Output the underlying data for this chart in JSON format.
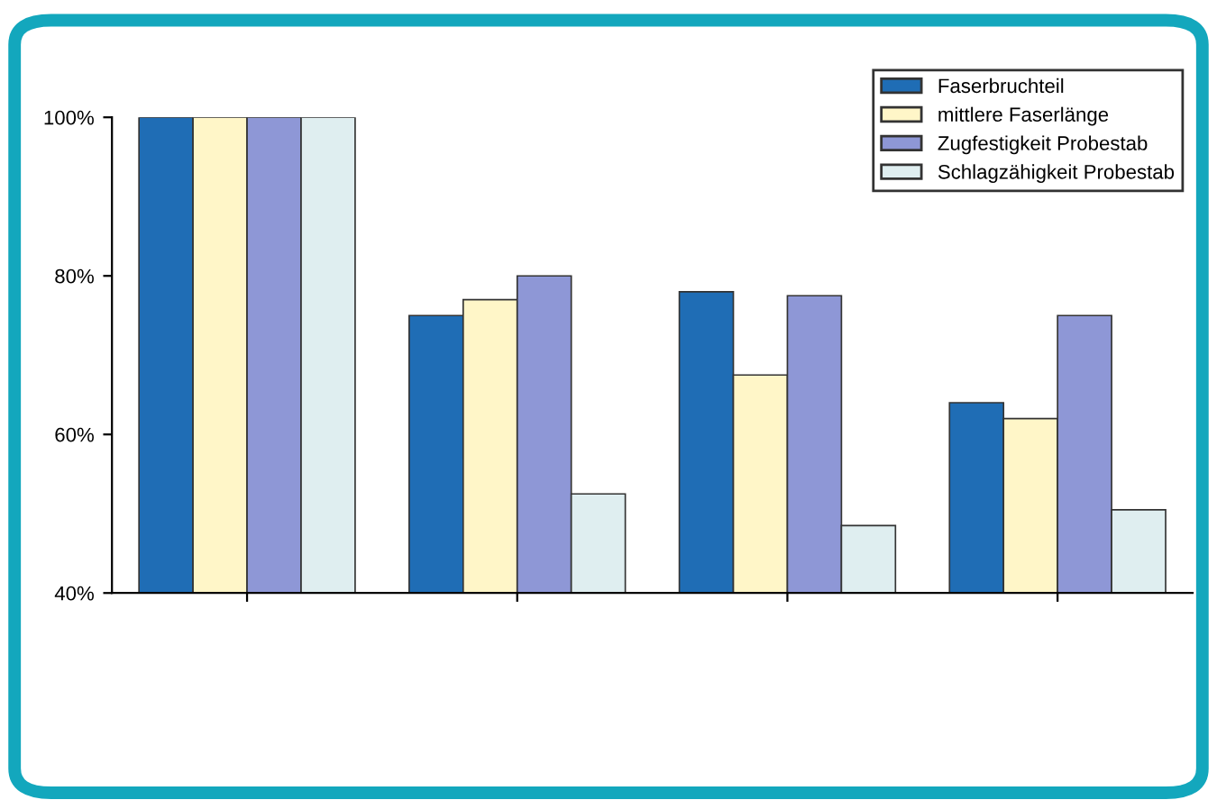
{
  "chart_data": {
    "type": "bar",
    "categories": [
      null,
      null,
      null,
      null
    ],
    "series": [
      {
        "name": "Faserbruchteil",
        "color": "#1f6db5",
        "values": [
          100,
          75,
          78,
          64
        ]
      },
      {
        "name": "mittlere Faserlänge",
        "color": "#fff6c8",
        "values": [
          100,
          77,
          67.5,
          62
        ]
      },
      {
        "name": "Zugfestigkeit Probestab",
        "color": "#8e97d6",
        "values": [
          100,
          80,
          77.5,
          75
        ]
      },
      {
        "name": "Schlagzähigkeit Probestab",
        "color": "#dfeef0",
        "values": [
          100,
          52.5,
          48.5,
          50.5
        ]
      }
    ],
    "ylim": [
      40,
      100
    ],
    "yticks": [
      {
        "value": 40,
        "label": "40%"
      },
      {
        "value": 60,
        "label": "60%"
      },
      {
        "value": 80,
        "label": "80%"
      },
      {
        "value": 100,
        "label": "100%"
      }
    ],
    "grid": false,
    "legend": "top right"
  }
}
